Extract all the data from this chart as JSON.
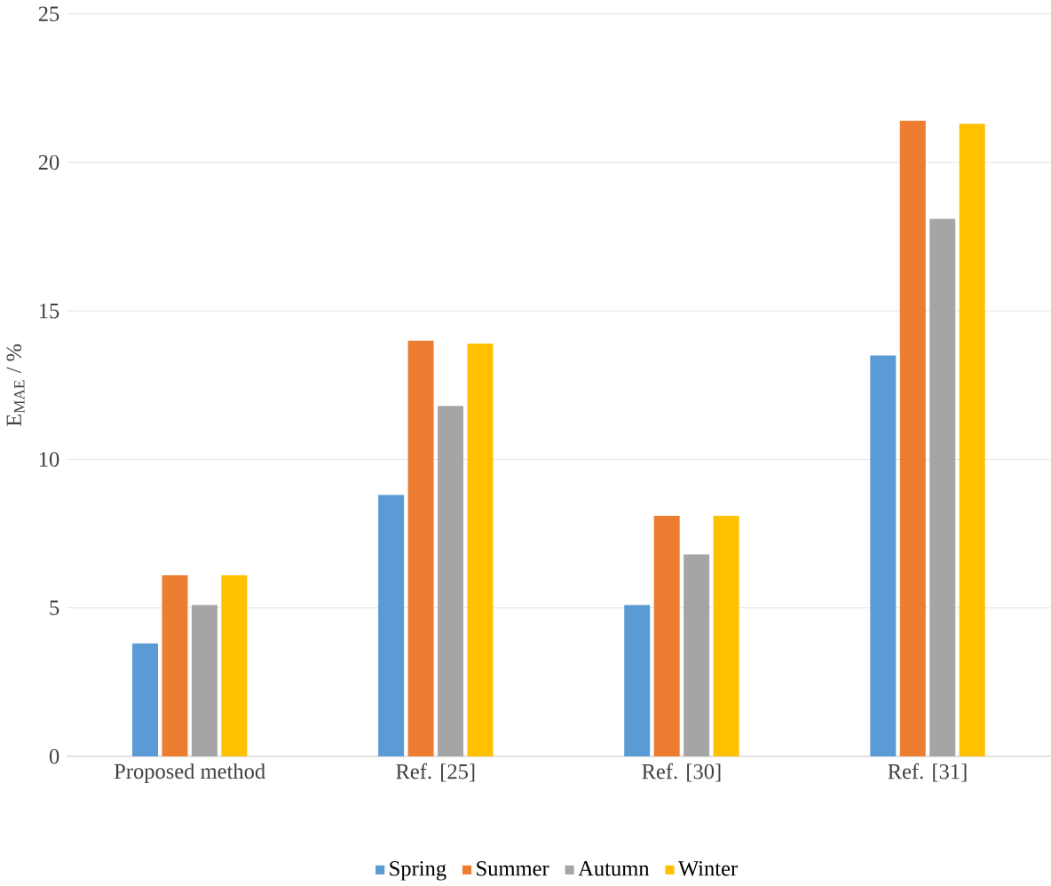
{
  "chart_data": {
    "type": "bar",
    "ylabel": "E$_{MAE}$ / %",
    "categories": [
      "Proposed method",
      "Ref. [25]",
      "Ref. [30]",
      "Ref. [31]"
    ],
    "series": [
      {
        "name": "Spring",
        "color": "#5b9bd5",
        "values": [
          3.8,
          8.8,
          5.1,
          13.5
        ]
      },
      {
        "name": "Summer",
        "color": "#ed7d31",
        "values": [
          6.1,
          14.0,
          8.1,
          21.4
        ]
      },
      {
        "name": "Autumn",
        "color": "#a5a5a5",
        "values": [
          5.1,
          11.8,
          6.8,
          18.1
        ]
      },
      {
        "name": "Winter",
        "color": "#ffc000",
        "values": [
          6.1,
          13.9,
          8.1,
          21.3
        ]
      }
    ],
    "ylim": [
      0,
      25
    ],
    "yticks": [
      0,
      5,
      10,
      15,
      20,
      25
    ],
    "grid": "y",
    "legend": "bottom"
  }
}
